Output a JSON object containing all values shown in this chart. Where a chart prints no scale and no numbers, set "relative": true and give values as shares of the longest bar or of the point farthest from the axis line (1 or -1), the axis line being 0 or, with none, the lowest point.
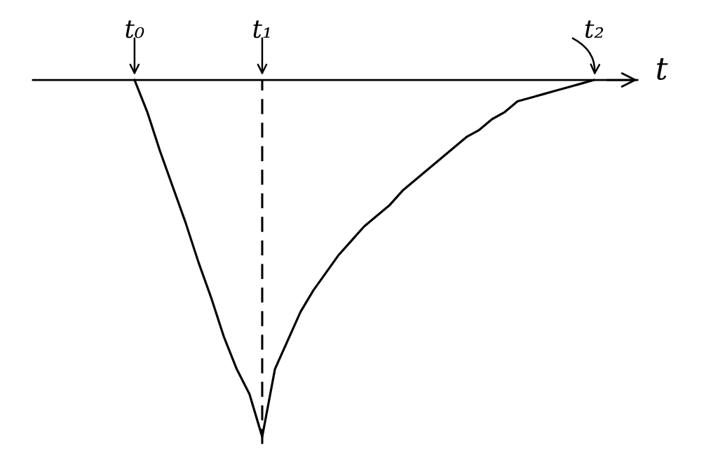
{
  "chart_data": {
    "type": "line",
    "relative": true,
    "xlabel": "t",
    "categories": [
      "t₀",
      null,
      null,
      null,
      null,
      null,
      null,
      null,
      null,
      null,
      "t₁",
      null,
      null,
      null,
      null,
      null,
      null,
      null,
      null,
      null,
      null,
      null,
      null,
      null,
      null,
      null,
      null,
      null,
      null,
      null,
      null,
      null,
      null,
      null,
      null,
      null,
      "t₂"
    ],
    "series": [
      {
        "color": "#000000",
        "values": [
          0,
          -0.09,
          -0.2,
          -0.3,
          -0.4,
          -0.51,
          -0.61,
          -0.72,
          -0.81,
          -0.88,
          -1,
          -0.81,
          -0.73,
          -0.65,
          -0.59,
          -0.54,
          -0.49,
          -0.45,
          -0.41,
          -0.38,
          -0.35,
          -0.31,
          -0.28,
          -0.25,
          -0.22,
          -0.19,
          -0.16,
          -0.14,
          -0.11,
          -0.09,
          -0.06,
          -0.05,
          -0.04,
          -0.03,
          -0.02,
          -0.01,
          0
        ]
      }
    ],
    "ref_lines": [
      {
        "axis": "x",
        "value": "t₁",
        "line_style": "dashed",
        "color": "#000000"
      }
    ],
    "line_style": "solid"
  }
}
